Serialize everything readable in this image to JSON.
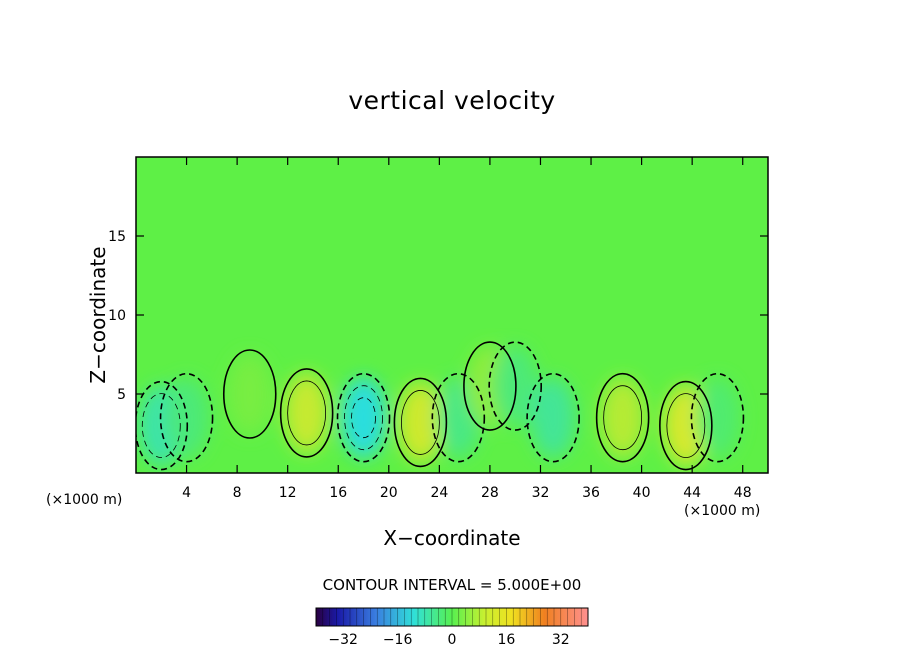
{
  "chart_data": {
    "type": "heatmap",
    "title": "vertical velocity",
    "xlabel": "X−coordinate",
    "ylabel": "Z−coordinate",
    "x_unit": "(×1000 m)",
    "xlim": [
      0,
      50
    ],
    "ylim": [
      0,
      20
    ],
    "x_ticks": [
      4,
      8,
      12,
      16,
      20,
      24,
      28,
      32,
      36,
      40,
      44,
      48
    ],
    "y_ticks": [
      5,
      10,
      15
    ],
    "contour_interval_label": "CONTOUR INTERVAL = 5.000E+00",
    "colorbar": {
      "range": [
        -40,
        40
      ],
      "ticks": [
        -32,
        -16,
        0,
        16,
        32
      ],
      "tick_labels": [
        "−32",
        "−16",
        "0",
        "16",
        "32"
      ]
    },
    "features": [
      {
        "x": 2,
        "z": 3,
        "value": -10
      },
      {
        "x": 4,
        "z": 3.5,
        "value": -5
      },
      {
        "x": 9,
        "z": 5,
        "value": 3
      },
      {
        "x": 13.5,
        "z": 3.8,
        "value": 12
      },
      {
        "x": 18,
        "z": 3.5,
        "value": -15
      },
      {
        "x": 22.5,
        "z": 3.2,
        "value": 13
      },
      {
        "x": 25.5,
        "z": 3.5,
        "value": -6
      },
      {
        "x": 28,
        "z": 5.5,
        "value": 6
      },
      {
        "x": 30,
        "z": 5.5,
        "value": -5
      },
      {
        "x": 33,
        "z": 3.5,
        "value": -8
      },
      {
        "x": 38.5,
        "z": 3.5,
        "value": 10
      },
      {
        "x": 43.5,
        "z": 3,
        "value": 14
      },
      {
        "x": 46,
        "z": 3.5,
        "value": -4
      }
    ]
  }
}
